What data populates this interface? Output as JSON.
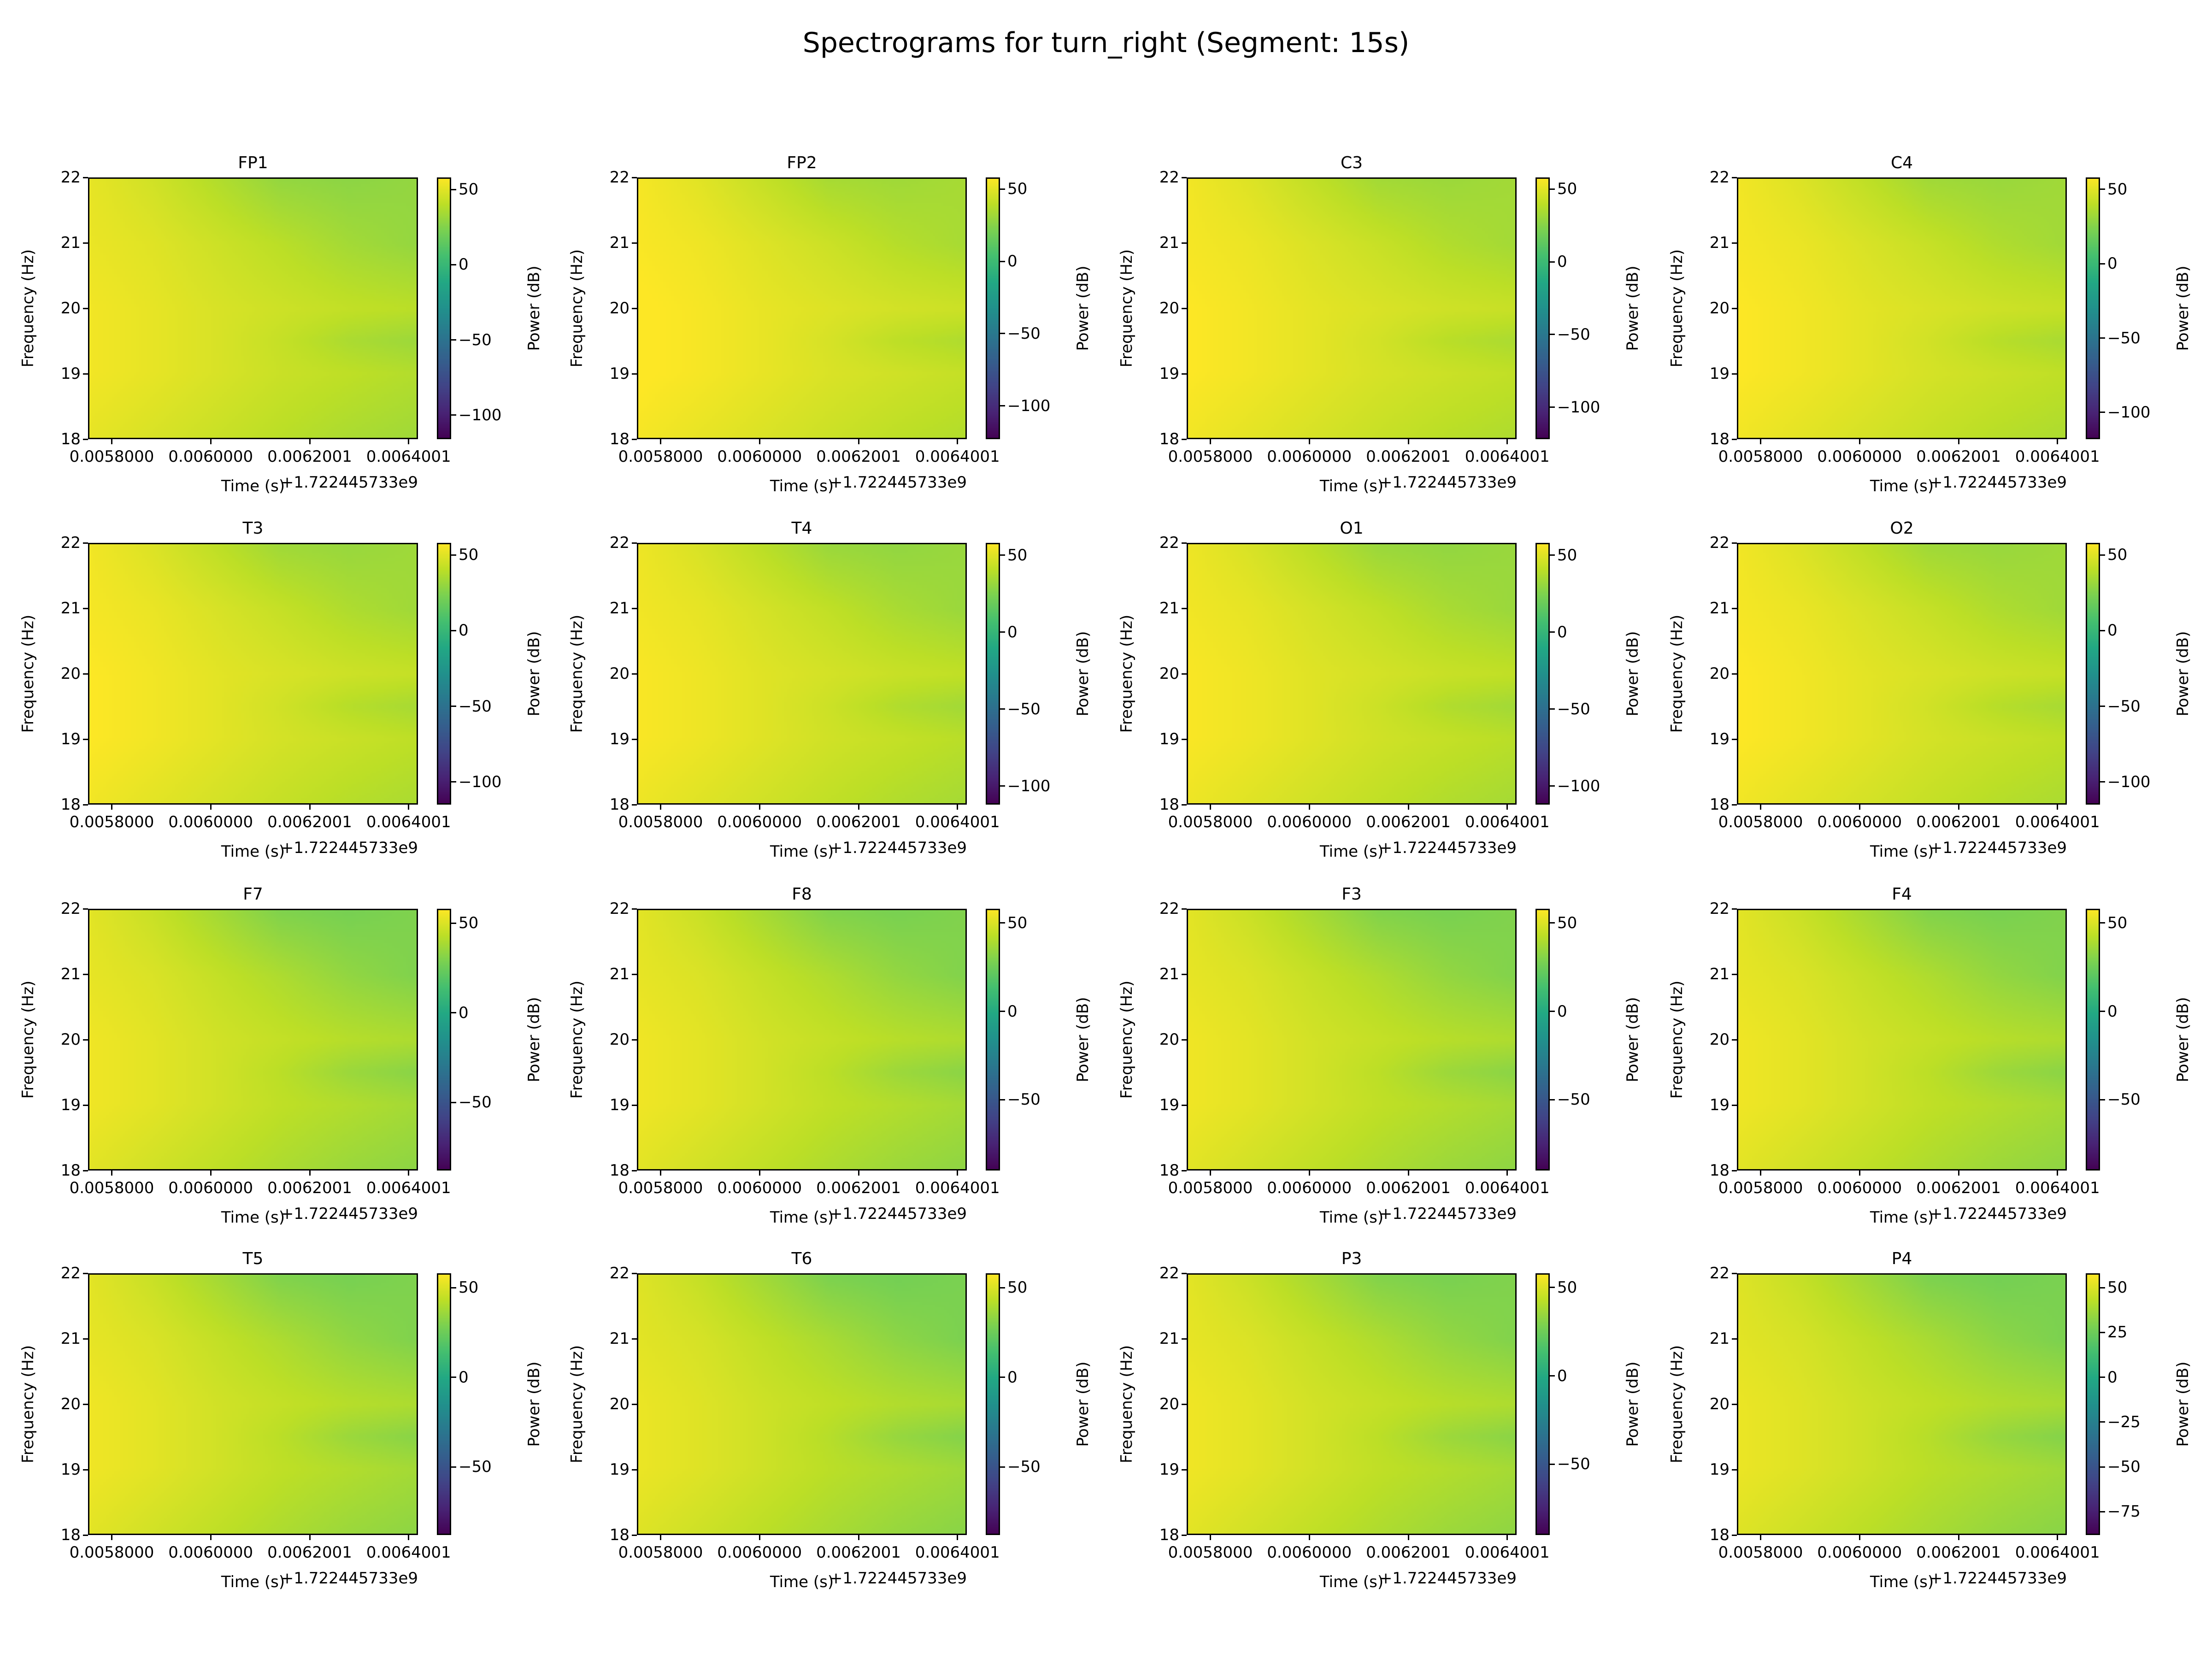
{
  "title": "Spectrograms for turn_right (Segment: 15s)",
  "chart_data": {
    "type": "heatmap",
    "colormap": "viridis",
    "xlabel": "Time (s)",
    "x_offset_label": "+1.722445733e9",
    "ylabel": "Frequency (Hz)",
    "colorbar_label": "Power (dB)",
    "xlim": [
      0.005752,
      0.006419
    ],
    "ylim": [
      18,
      22
    ],
    "x_ticks": [
      "0.0058000",
      "0.0060000",
      "0.0062001",
      "0.0064001"
    ],
    "x_tick_values": [
      0.0058,
      0.006,
      0.0062001,
      0.0064001
    ],
    "y_ticks": [
      "18",
      "19",
      "20",
      "21",
      "22"
    ],
    "grid_frequencies": [
      18,
      19,
      19.5,
      20,
      21,
      22
    ],
    "grid_times": [
      0.005752,
      0.00588,
      0.00601,
      0.00614,
      0.00628,
      0.006419
    ],
    "base_power_db": [
      [
        52,
        48,
        44,
        40,
        36,
        33
      ],
      [
        55,
        52,
        48,
        44,
        41,
        38
      ],
      [
        55,
        52,
        48,
        43,
        36,
        32
      ],
      [
        55,
        52,
        48,
        45,
        42,
        40
      ],
      [
        53,
        50,
        45,
        40,
        34,
        30
      ],
      [
        52,
        46,
        38,
        30,
        28,
        30
      ]
    ],
    "panels": [
      {
        "name": "FP1",
        "offset_db": 0,
        "clim": [
          -116,
          58
        ],
        "cbar_ticks": [
          "50",
          "0",
          "−50",
          "−100"
        ],
        "cbar_values": [
          50,
          0,
          -50,
          -100
        ]
      },
      {
        "name": "FP2",
        "offset_db": 4,
        "clim": [
          -123,
          58
        ],
        "cbar_ticks": [
          "50",
          "0",
          "−50",
          "−100"
        ],
        "cbar_values": [
          50,
          0,
          -50,
          -100
        ]
      },
      {
        "name": "C3",
        "offset_db": 3,
        "clim": [
          -122,
          58
        ],
        "cbar_ticks": [
          "50",
          "0",
          "−50",
          "−100"
        ],
        "cbar_values": [
          50,
          0,
          -50,
          -100
        ]
      },
      {
        "name": "C4",
        "offset_db": 3,
        "clim": [
          -118,
          58
        ],
        "cbar_ticks": [
          "50",
          "0",
          "−50",
          "−100"
        ],
        "cbar_values": [
          50,
          0,
          -50,
          -100
        ]
      },
      {
        "name": "T3",
        "offset_db": 3,
        "clim": [
          -115,
          58
        ],
        "cbar_ticks": [
          "50",
          "0",
          "−50",
          "−100"
        ],
        "cbar_values": [
          50,
          0,
          -50,
          -100
        ]
      },
      {
        "name": "T4",
        "offset_db": 2,
        "clim": [
          -112,
          58
        ],
        "cbar_ticks": [
          "50",
          "0",
          "−50",
          "−100"
        ],
        "cbar_values": [
          50,
          0,
          -50,
          -100
        ]
      },
      {
        "name": "O1",
        "offset_db": 2,
        "clim": [
          -112,
          58
        ],
        "cbar_ticks": [
          "50",
          "0",
          "−50",
          "−100"
        ],
        "cbar_values": [
          50,
          0,
          -50,
          -100
        ]
      },
      {
        "name": "O2",
        "offset_db": 3,
        "clim": [
          -115,
          58
        ],
        "cbar_ticks": [
          "50",
          "0",
          "−50",
          "−100"
        ],
        "cbar_values": [
          50,
          0,
          -50,
          -100
        ]
      },
      {
        "name": "F7",
        "offset_db": 0,
        "clim": [
          -88,
          58
        ],
        "cbar_ticks": [
          "50",
          "0",
          "−50"
        ],
        "cbar_values": [
          50,
          0,
          -50
        ]
      },
      {
        "name": "F8",
        "offset_db": 0,
        "clim": [
          -90,
          58
        ],
        "cbar_ticks": [
          "50",
          "0",
          "−50"
        ],
        "cbar_values": [
          50,
          0,
          -50
        ]
      },
      {
        "name": "F3",
        "offset_db": 0,
        "clim": [
          -90,
          58
        ],
        "cbar_ticks": [
          "50",
          "0",
          "−50"
        ],
        "cbar_values": [
          50,
          0,
          -50
        ]
      },
      {
        "name": "F4",
        "offset_db": 0,
        "clim": [
          -90,
          58
        ],
        "cbar_ticks": [
          "50",
          "0",
          "−50"
        ],
        "cbar_values": [
          50,
          0,
          -50
        ]
      },
      {
        "name": "T5",
        "offset_db": 0,
        "clim": [
          -88,
          58
        ],
        "cbar_ticks": [
          "50",
          "0",
          "−50"
        ],
        "cbar_values": [
          50,
          0,
          -50
        ]
      },
      {
        "name": "T6",
        "offset_db": -1,
        "clim": [
          -88,
          58
        ],
        "cbar_ticks": [
          "50",
          "0",
          "−50"
        ],
        "cbar_values": [
          50,
          0,
          -50
        ]
      },
      {
        "name": "P3",
        "offset_db": 0,
        "clim": [
          -90,
          58
        ],
        "cbar_ticks": [
          "50",
          "0",
          "−50"
        ],
        "cbar_values": [
          50,
          0,
          -50
        ]
      },
      {
        "name": "P4",
        "offset_db": -1,
        "clim": [
          -88,
          58
        ],
        "cbar_ticks": [
          "50",
          "25",
          "0",
          "−25",
          "−50",
          "−75"
        ],
        "cbar_values": [
          50,
          25,
          0,
          -25,
          -50,
          -75
        ]
      }
    ]
  }
}
